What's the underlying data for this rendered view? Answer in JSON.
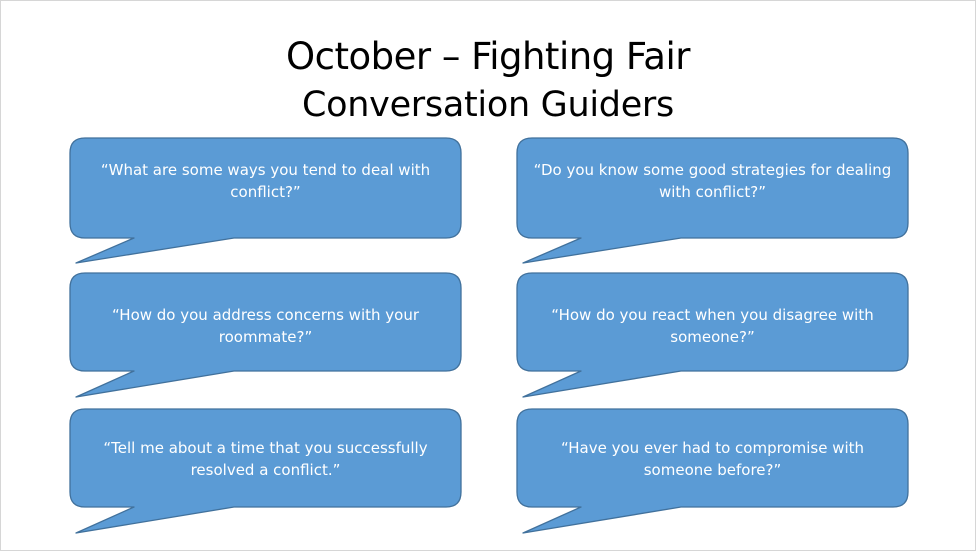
{
  "slide": {
    "title": "October – Fighting Fair",
    "subtitle": "Conversation Guiders"
  },
  "colors": {
    "bubble_fill": "#5b9bd5",
    "bubble_stroke": "#41719c",
    "bubble_text": "#ffffff"
  },
  "bubbles": [
    {
      "text": "“What are some ways you tend to deal with conflict?”"
    },
    {
      "text": "“Do you know some good strategies for dealing with conflict?”"
    },
    {
      "text": "“How do you address concerns with your roommate?”"
    },
    {
      "text": "“How do you react when you disagree with someone?”"
    },
    {
      "text": "“Tell me about a time that you successfully resolved a conflict.”"
    },
    {
      "text": "“Have you ever had to compromise with someone before?”"
    }
  ]
}
